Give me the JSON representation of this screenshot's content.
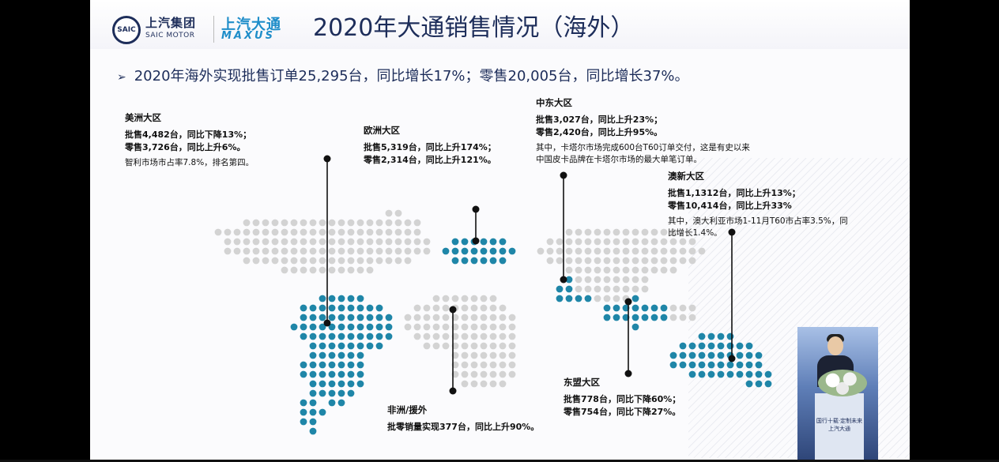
{
  "header": {
    "saic_logo_text": "SAIC",
    "saic_cn": "上汽集团",
    "saic_en": "SAIC MOTOR",
    "maxus_cn": "上汽大通",
    "maxus_en": "MAXUS",
    "title": "2020年大通销售情况（海外）"
  },
  "summary": {
    "bullet": "➢",
    "text": "2020年海外实现批售订单25,295台，同比增长17%；零售20,005台，同比增长37%。"
  },
  "regions": {
    "americas": {
      "name": "美洲大区",
      "wholesale": "批售4,482台，同比下降13%；",
      "retail": "零售3,726台，同比上升6%。",
      "note": "智利市场市占率7.8%，排名第四。"
    },
    "europe": {
      "name": "欧洲大区",
      "wholesale": "批售5,319台，同比上升174%；",
      "retail": "零售2,314台，同比上升121%。"
    },
    "middle_east": {
      "name": "中东大区",
      "wholesale": "批售3,027台，同比上升23%；",
      "retail": "零售2,420台，同比上升95%。",
      "note_line1": "其中，卡塔尔市场完成600台T60订单交付，这是有史以来",
      "note_line2": "中国皮卡品牌在卡塔尔市场的最大单笔订单。"
    },
    "oceania": {
      "name": "澳新大区",
      "wholesale": "批售1,1312台，同比上升13%；",
      "retail": "零售10,414台，同比上升33%",
      "note_line1": "其中，澳大利亚市场1-11月T60市占率3.5%，同",
      "note_line2": "比增长1.4%。"
    },
    "africa": {
      "name": "非洲/援外",
      "line": "批零销量实现377台，同比上升90%。"
    },
    "asean": {
      "name": "东盟大区",
      "wholesale": "批售778台，同比下降60%；",
      "retail": "零售754台，同比下降27%。"
    }
  },
  "speaker": {
    "podium_line1": "国行十载·定制未来",
    "podium_line2": "上汽大通"
  },
  "colors": {
    "navy": "#1d2d5a",
    "brand_blue": "#1e8dc9",
    "map_grey": "#d3d3d3",
    "map_highlight": "#1f86a8",
    "pin": "#111111"
  }
}
